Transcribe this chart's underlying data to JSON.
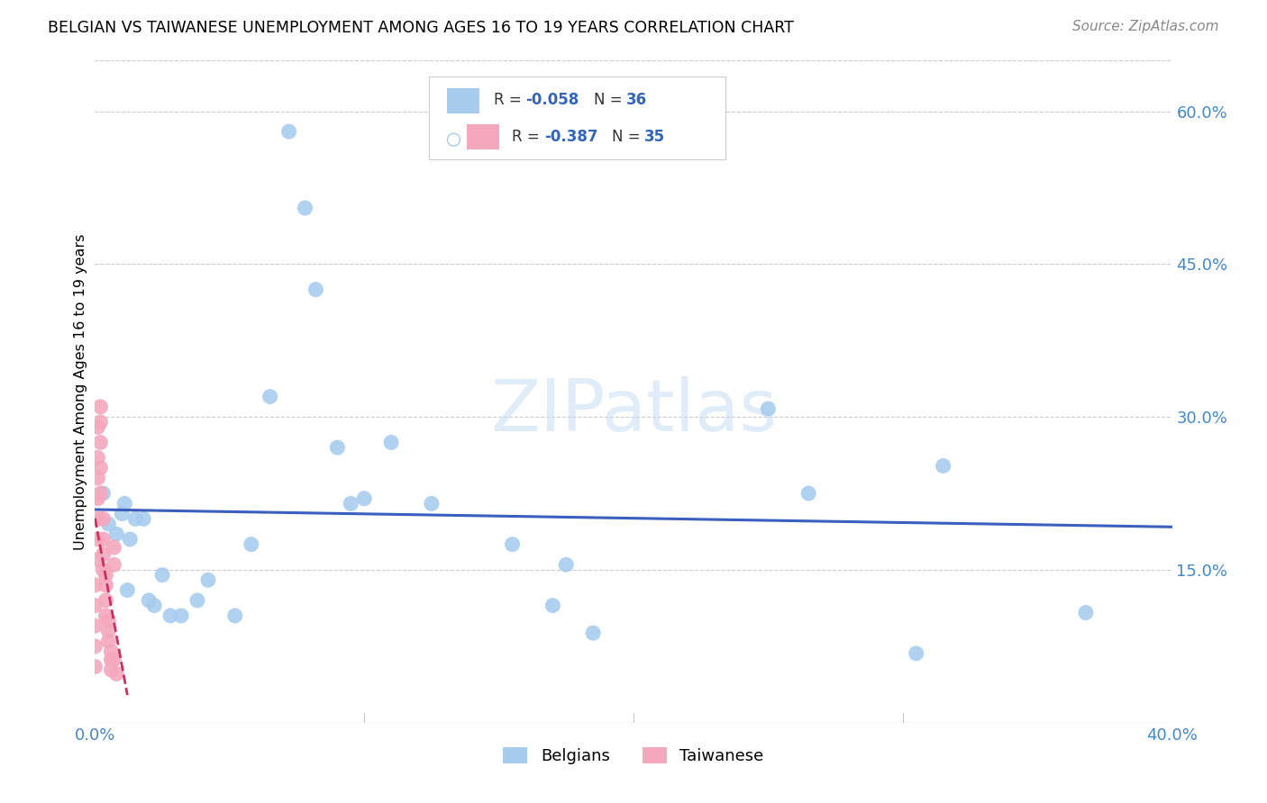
{
  "title": "BELGIAN VS TAIWANESE UNEMPLOYMENT AMONG AGES 16 TO 19 YEARS CORRELATION CHART",
  "source": "Source: ZipAtlas.com",
  "ylabel": "Unemployment Among Ages 16 to 19 years",
  "xlim": [
    0.0,
    0.4
  ],
  "ylim": [
    0.0,
    0.65
  ],
  "x_ticks": [
    0.0,
    0.1,
    0.2,
    0.3,
    0.4
  ],
  "x_tick_labels": [
    "0.0%",
    "",
    "",
    "",
    "40.0%"
  ],
  "y_ticks": [
    0.15,
    0.3,
    0.45,
    0.6
  ],
  "y_tick_labels": [
    "15.0%",
    "30.0%",
    "45.0%",
    "60.0%"
  ],
  "belgian_R": -0.058,
  "belgian_N": 36,
  "taiwanese_R": -0.387,
  "taiwanese_N": 35,
  "belgian_color": "#A8CCEE",
  "taiwanese_color": "#F4A8BE",
  "trendline_belgian_color": "#3A5FBF",
  "trendline_taiwanese_color": "#CC3060",
  "background_color": "#FFFFFF",
  "grid_color": "#CCCCCC",
  "watermark": "ZIPatlas",
  "belgian_x": [
    0.003,
    0.005,
    0.008,
    0.01,
    0.011,
    0.012,
    0.013,
    0.015,
    0.018,
    0.02,
    0.022,
    0.025,
    0.028,
    0.032,
    0.038,
    0.042,
    0.052,
    0.058,
    0.065,
    0.072,
    0.078,
    0.082,
    0.09,
    0.095,
    0.1,
    0.11,
    0.125,
    0.155,
    0.17,
    0.175,
    0.185,
    0.25,
    0.265,
    0.305,
    0.315,
    0.368
  ],
  "belgian_y": [
    0.225,
    0.195,
    0.185,
    0.205,
    0.215,
    0.13,
    0.18,
    0.2,
    0.2,
    0.12,
    0.115,
    0.145,
    0.105,
    0.105,
    0.12,
    0.14,
    0.105,
    0.175,
    0.32,
    0.58,
    0.505,
    0.425,
    0.27,
    0.215,
    0.22,
    0.275,
    0.215,
    0.175,
    0.115,
    0.155,
    0.088,
    0.308,
    0.225,
    0.068,
    0.252,
    0.108
  ],
  "taiwanese_x": [
    0.0,
    0.0,
    0.0,
    0.0,
    0.0,
    0.001,
    0.001,
    0.001,
    0.001,
    0.001,
    0.001,
    0.001,
    0.002,
    0.002,
    0.002,
    0.002,
    0.002,
    0.003,
    0.003,
    0.003,
    0.003,
    0.004,
    0.004,
    0.004,
    0.004,
    0.005,
    0.005,
    0.005,
    0.006,
    0.006,
    0.006,
    0.007,
    0.007,
    0.007,
    0.008
  ],
  "taiwanese_y": [
    0.055,
    0.075,
    0.095,
    0.115,
    0.135,
    0.16,
    0.18,
    0.2,
    0.22,
    0.24,
    0.26,
    0.29,
    0.31,
    0.295,
    0.275,
    0.25,
    0.225,
    0.2,
    0.18,
    0.165,
    0.15,
    0.145,
    0.135,
    0.12,
    0.105,
    0.1,
    0.09,
    0.08,
    0.07,
    0.062,
    0.052,
    0.155,
    0.172,
    0.062,
    0.048
  ]
}
